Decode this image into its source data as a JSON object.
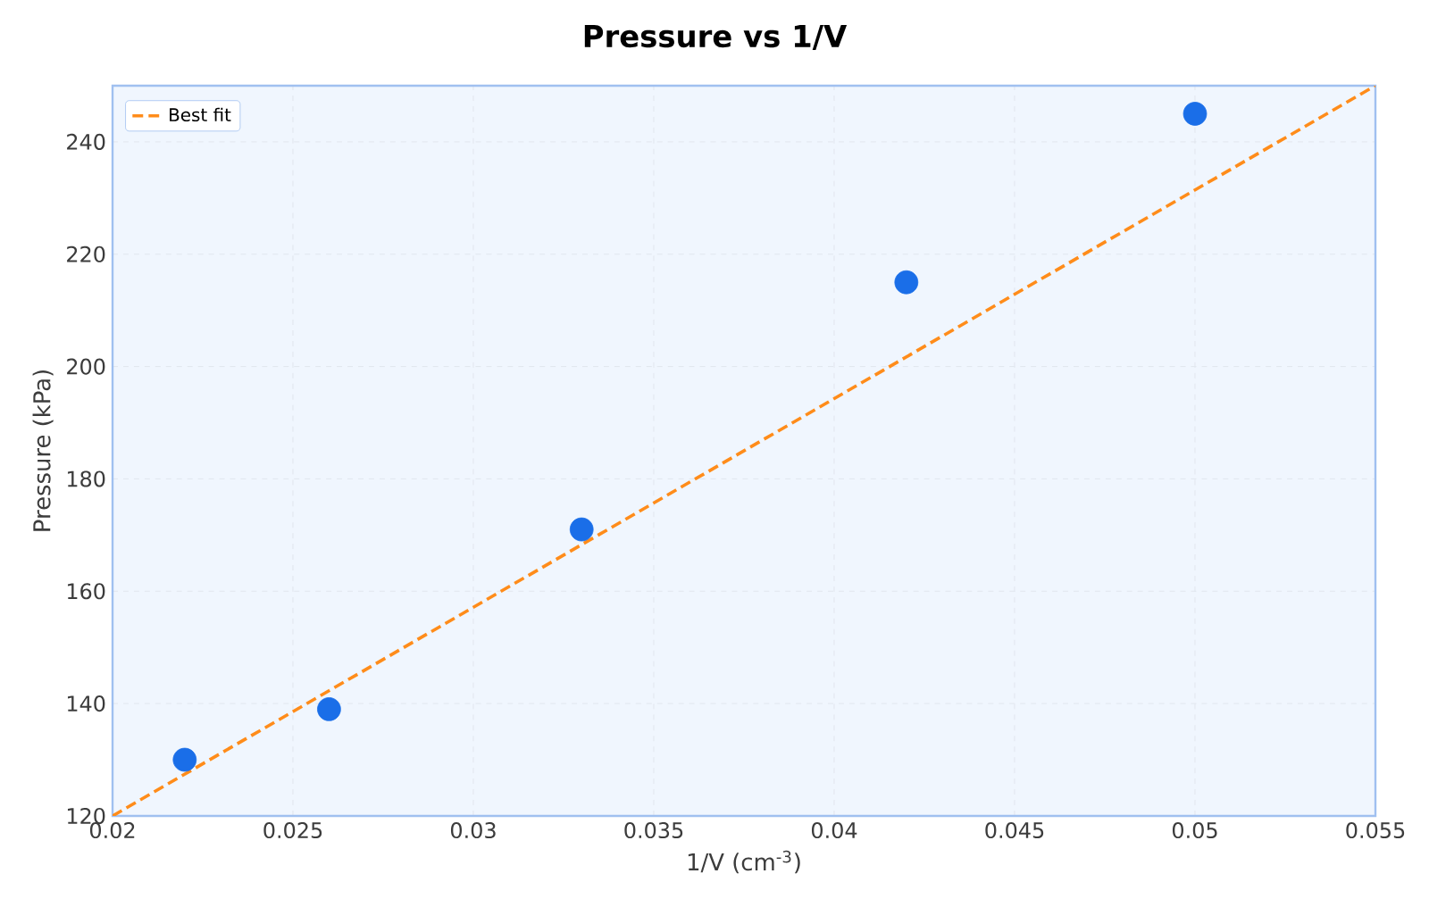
{
  "chart_data": {
    "type": "scatter",
    "title": "Pressure vs 1/V",
    "xlabel": "1/V (cm$^{-3}$)",
    "ylabel": "Pressure (kPa)",
    "xlim": [
      0.02,
      0.055
    ],
    "ylim": [
      120,
      250
    ],
    "xticks": [
      0.02,
      0.025,
      0.03,
      0.035,
      0.04,
      0.045,
      0.05,
      0.055
    ],
    "yticks": [
      120,
      140,
      160,
      180,
      200,
      220,
      240
    ],
    "grid": true,
    "legend": "top left",
    "series": [
      {
        "type": "line",
        "name": "Best fit",
        "color": "#ff8c1a",
        "x": [
          0.02,
          0.055
        ],
        "values": [
          120,
          250
        ],
        "line_style": "dashed",
        "marker": "none"
      },
      {
        "color": "#1a6ee8",
        "x": [
          0.022,
          0.026,
          0.033,
          0.042,
          0.05
        ],
        "values": [
          130,
          139,
          171,
          215,
          245
        ],
        "marker": "circle"
      }
    ]
  }
}
